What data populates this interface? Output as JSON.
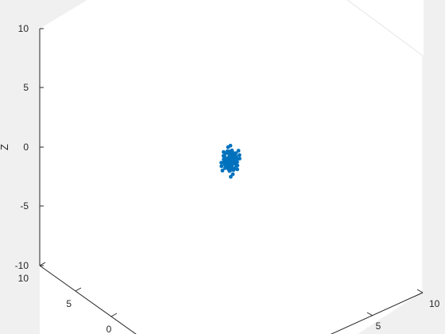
{
  "chart_data": {
    "type": "scatter",
    "title": "",
    "xlabel": "",
    "ylabel": "",
    "zlabel": "Z",
    "xlim": [
      -10,
      10
    ],
    "ylim": [
      -10,
      10
    ],
    "zlim": [
      -10,
      10
    ],
    "z_ticks": [
      "10",
      "5",
      "0",
      "-5",
      "-10"
    ],
    "x_ticks_visible": [
      "10",
      "5"
    ],
    "y_ticks_visible": [
      "10",
      "5",
      "0"
    ],
    "grid": false,
    "marker_color": "#0072BD",
    "axes_background": "#ffffff",
    "figure_background": "#f0f0f0",
    "points": [
      {
        "x": 0.0,
        "y": 0.0,
        "z": 0.8
      },
      {
        "x": 0.3,
        "y": -0.2,
        "z": 0.3
      },
      {
        "x": -0.4,
        "y": 0.1,
        "z": 0.1
      },
      {
        "x": 0.2,
        "y": 0.4,
        "z": -0.2
      },
      {
        "x": -0.1,
        "y": -0.3,
        "z": -0.5
      },
      {
        "x": 0.6,
        "y": 0.1,
        "z": 0.0
      },
      {
        "x": -0.6,
        "y": -0.1,
        "z": 0.4
      },
      {
        "x": 0.1,
        "y": 0.6,
        "z": 0.5
      },
      {
        "x": -0.2,
        "y": -0.6,
        "z": -0.1
      },
      {
        "x": 0.8,
        "y": -0.5,
        "z": -0.4
      },
      {
        "x": -0.8,
        "y": 0.5,
        "z": 0.2
      },
      {
        "x": 0.4,
        "y": 0.5,
        "z": -0.7
      },
      {
        "x": -0.5,
        "y": -0.4,
        "z": 0.7
      },
      {
        "x": 0.0,
        "y": 0.9,
        "z": 0.0
      },
      {
        "x": 0.1,
        "y": -0.9,
        "z": 0.2
      },
      {
        "x": 0.9,
        "y": 0.3,
        "z": 0.3
      },
      {
        "x": -0.9,
        "y": -0.3,
        "z": -0.3
      },
      {
        "x": 0.3,
        "y": 0.2,
        "z": 1.0
      },
      {
        "x": -0.3,
        "y": 0.3,
        "z": -0.9
      },
      {
        "x": 0.5,
        "y": -0.6,
        "z": 0.6
      },
      {
        "x": -0.6,
        "y": 0.6,
        "z": -0.6
      },
      {
        "x": 1.1,
        "y": 0.0,
        "z": -0.2
      },
      {
        "x": -1.1,
        "y": 0.2,
        "z": 0.1
      },
      {
        "x": 0.2,
        "y": 1.1,
        "z": 0.3
      },
      {
        "x": -0.2,
        "y": -1.1,
        "z": -0.2
      },
      {
        "x": 0.7,
        "y": 0.7,
        "z": 0.2
      },
      {
        "x": -0.7,
        "y": -0.7,
        "z": 0.0
      },
      {
        "x": 0.4,
        "y": -0.2,
        "z": -1.1
      },
      {
        "x": -0.1,
        "y": 0.2,
        "z": 1.2
      },
      {
        "x": 0.0,
        "y": 0.0,
        "z": -0.3
      },
      {
        "x": 0.2,
        "y": 0.1,
        "z": 0.1
      },
      {
        "x": -0.3,
        "y": -0.1,
        "z": 0.3
      },
      {
        "x": 0.1,
        "y": -0.4,
        "z": 0.4
      },
      {
        "x": -0.4,
        "y": 0.4,
        "z": -0.4
      },
      {
        "x": 0.6,
        "y": 0.3,
        "z": 0.6
      },
      {
        "x": -0.5,
        "y": 0.0,
        "z": -0.7
      },
      {
        "x": 1.3,
        "y": -0.3,
        "z": 0.1
      },
      {
        "x": -1.3,
        "y": 0.4,
        "z": -0.1
      },
      {
        "x": 0.3,
        "y": -1.3,
        "z": 0.0
      },
      {
        "x": -0.4,
        "y": 1.3,
        "z": 0.2
      },
      {
        "x": 0.9,
        "y": -0.9,
        "z": 0.5
      },
      {
        "x": -0.9,
        "y": 0.9,
        "z": -0.5
      },
      {
        "x": 0.5,
        "y": 0.0,
        "z": 1.3
      },
      {
        "x": -0.5,
        "y": 0.1,
        "z": -1.3
      },
      {
        "x": 1.0,
        "y": 0.6,
        "z": -0.8
      },
      {
        "x": -1.0,
        "y": -0.6,
        "z": 0.8
      },
      {
        "x": 0.2,
        "y": 0.8,
        "z": -1.0
      },
      {
        "x": -0.2,
        "y": -0.8,
        "z": 1.0
      },
      {
        "x": 1.5,
        "y": 0.2,
        "z": 0.4
      },
      {
        "x": -1.5,
        "y": -0.2,
        "z": -0.4
      },
      {
        "x": 0.1,
        "y": 1.5,
        "z": -0.3
      },
      {
        "x": -0.1,
        "y": -1.5,
        "z": 0.3
      },
      {
        "x": 0.8,
        "y": 0.0,
        "z": 0.9
      },
      {
        "x": -0.8,
        "y": 0.2,
        "z": -0.9
      },
      {
        "x": 0.0,
        "y": -0.7,
        "z": -0.8
      },
      {
        "x": 0.3,
        "y": 0.7,
        "z": 0.8
      },
      {
        "x": 1.2,
        "y": -1.0,
        "z": -0.3
      },
      {
        "x": -1.2,
        "y": 1.0,
        "z": 0.3
      },
      {
        "x": 0.6,
        "y": 1.0,
        "z": 0.0
      },
      {
        "x": -0.6,
        "y": -1.0,
        "z": 0.1
      },
      {
        "x": 0.0,
        "y": 0.3,
        "z": -1.5
      },
      {
        "x": 0.2,
        "y": -0.3,
        "z": 1.5
      },
      {
        "x": 1.7,
        "y": -0.6,
        "z": -0.6
      },
      {
        "x": -1.7,
        "y": 0.6,
        "z": 0.6
      },
      {
        "x": 0.4,
        "y": 1.6,
        "z": 0.7
      },
      {
        "x": -0.4,
        "y": -1.6,
        "z": -0.7
      },
      {
        "x": 1.1,
        "y": 1.1,
        "z": -0.5
      },
      {
        "x": -1.1,
        "y": -1.1,
        "z": 0.5
      },
      {
        "x": 0.7,
        "y": -0.3,
        "z": -1.4
      },
      {
        "x": -0.7,
        "y": 0.3,
        "z": 1.4
      },
      {
        "x": 0.1,
        "y": 0.1,
        "z": 0.0
      },
      {
        "x": -0.1,
        "y": 0.0,
        "z": 0.2
      },
      {
        "x": 0.0,
        "y": -0.1,
        "z": -0.1
      },
      {
        "x": 0.4,
        "y": 0.3,
        "z": 0.3
      },
      {
        "x": -0.3,
        "y": -0.4,
        "z": -0.3
      },
      {
        "x": 0.5,
        "y": -0.5,
        "z": 0.1
      },
      {
        "x": -0.5,
        "y": 0.5,
        "z": 0.2
      },
      {
        "x": 2.0,
        "y": 0.3,
        "z": 0.1
      },
      {
        "x": -2.0,
        "y": -0.3,
        "z": -0.2
      },
      {
        "x": 0.3,
        "y": 2.0,
        "z": -0.4
      },
      {
        "x": -0.3,
        "y": -2.0,
        "z": 0.4
      },
      {
        "x": 1.3,
        "y": 0.5,
        "z": 1.1
      },
      {
        "x": -1.3,
        "y": -0.5,
        "z": -1.1
      },
      {
        "x": 0.6,
        "y": -1.3,
        "z": -1.0
      },
      {
        "x": -0.6,
        "y": 1.3,
        "z": 1.0
      },
      {
        "x": 0.0,
        "y": 0.0,
        "z": 2.3
      },
      {
        "x": 0.2,
        "y": 0.1,
        "z": -2.4
      },
      {
        "x": 1.6,
        "y": 0.9,
        "z": 0.2
      },
      {
        "x": -1.6,
        "y": -0.9,
        "z": -0.2
      },
      {
        "x": 0.9,
        "y": 1.5,
        "z": -0.1
      },
      {
        "x": -0.9,
        "y": -1.5,
        "z": 0.1
      },
      {
        "x": 0.4,
        "y": 0.6,
        "z": 1.7
      },
      {
        "x": -0.4,
        "y": -0.6,
        "z": -1.7
      },
      {
        "x": 2.2,
        "y": -0.8,
        "z": 0.5
      },
      {
        "x": -2.2,
        "y": 0.8,
        "z": -0.5
      },
      {
        "x": 0.8,
        "y": -2.1,
        "z": 0.3
      },
      {
        "x": -0.8,
        "y": 2.1,
        "z": -0.3
      },
      {
        "x": 1.0,
        "y": 0.2,
        "z": -1.8
      },
      {
        "x": -1.0,
        "y": -0.2,
        "z": 1.8
      },
      {
        "x": 0.1,
        "y": -0.2,
        "z": 0.6
      },
      {
        "x": -0.2,
        "y": 0.2,
        "z": -0.6
      },
      {
        "x": 0.3,
        "y": -0.8,
        "z": 0.9
      },
      {
        "x": -0.3,
        "y": 0.8,
        "z": -0.8
      },
      {
        "x": 1.4,
        "y": -0.1,
        "z": -0.9
      },
      {
        "x": -1.4,
        "y": 0.1,
        "z": 0.9
      },
      {
        "x": 0.7,
        "y": 1.2,
        "z": 0.9
      },
      {
        "x": -0.7,
        "y": -1.2,
        "z": -0.9
      },
      {
        "x": 0.5,
        "y": 0.2,
        "z": -0.2
      },
      {
        "x": -0.2,
        "y": 0.5,
        "z": 0.5
      },
      {
        "x": 0.0,
        "y": -0.5,
        "z": 0.0
      },
      {
        "x": 1.8,
        "y": 1.3,
        "z": -0.2
      },
      {
        "x": -1.8,
        "y": -1.3,
        "z": 0.2
      },
      {
        "x": 2.4,
        "y": 0.1,
        "z": -0.8
      },
      {
        "x": -2.4,
        "y": -0.1,
        "z": 0.8
      },
      {
        "x": 0.2,
        "y": 2.5,
        "z": 0.6
      },
      {
        "x": -0.2,
        "y": -2.5,
        "z": -0.6
      },
      {
        "x": 1.2,
        "y": -1.4,
        "z": 1.3
      },
      {
        "x": -1.2,
        "y": 1.4,
        "z": -1.3
      },
      {
        "x": 0.9,
        "y": 0.4,
        "z": 0.4
      },
      {
        "x": -0.9,
        "y": -0.4,
        "z": -0.4
      },
      {
        "x": 0.1,
        "y": 0.9,
        "z": -0.5
      },
      {
        "x": -0.1,
        "y": -0.9,
        "z": 0.6
      }
    ]
  }
}
